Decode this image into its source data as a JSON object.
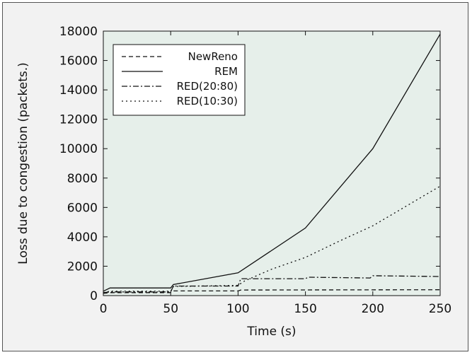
{
  "chart_data": {
    "type": "line",
    "title": "",
    "xlabel": "Time (s)",
    "ylabel": "Loss due to congestion (packets.)",
    "xlim": [
      0,
      250
    ],
    "ylim": [
      0,
      18000
    ],
    "xticks": [
      0,
      50,
      100,
      150,
      200,
      250
    ],
    "yticks": [
      0,
      2000,
      4000,
      6000,
      8000,
      10000,
      12000,
      14000,
      16000,
      18000
    ],
    "x_tick_labels": [
      "0",
      "50",
      "100",
      "150",
      "200",
      "250"
    ],
    "y_tick_labels": [
      "0",
      "2000",
      "4000",
      "6000",
      "8000",
      "10000",
      "12000",
      "14000",
      "16000",
      "18000"
    ],
    "legend_position": "top-left",
    "grid": false,
    "plot_background": "#e6efea",
    "series": [
      {
        "name": "NewReno",
        "dash": "dashed",
        "points": [
          [
            0,
            150
          ],
          [
            5,
            200
          ],
          [
            50,
            200
          ],
          [
            52,
            320
          ],
          [
            100,
            320
          ],
          [
            102,
            380
          ],
          [
            250,
            400
          ]
        ]
      },
      {
        "name": "REM",
        "dash": "solid",
        "points": [
          [
            0,
            300
          ],
          [
            5,
            520
          ],
          [
            50,
            520
          ],
          [
            52,
            750
          ],
          [
            100,
            1550
          ],
          [
            150,
            4600
          ],
          [
            200,
            10000
          ],
          [
            250,
            17800
          ]
        ]
      },
      {
        "name": "RED(20:80)",
        "dash": "dashdot",
        "points": [
          [
            0,
            200
          ],
          [
            5,
            250
          ],
          [
            50,
            250
          ],
          [
            52,
            650
          ],
          [
            100,
            650
          ],
          [
            102,
            1150
          ],
          [
            150,
            1150
          ],
          [
            152,
            1250
          ],
          [
            198,
            1200
          ],
          [
            200,
            1350
          ],
          [
            250,
            1300
          ]
        ]
      },
      {
        "name": "RED(10:30)",
        "dash": "dotted",
        "points": [
          [
            0,
            200
          ],
          [
            5,
            300
          ],
          [
            50,
            300
          ],
          [
            52,
            620
          ],
          [
            100,
            700
          ],
          [
            105,
            1000
          ],
          [
            125,
            1800
          ],
          [
            150,
            2600
          ],
          [
            175,
            3700
          ],
          [
            200,
            4750
          ],
          [
            225,
            6100
          ],
          [
            250,
            7450
          ]
        ]
      }
    ]
  }
}
